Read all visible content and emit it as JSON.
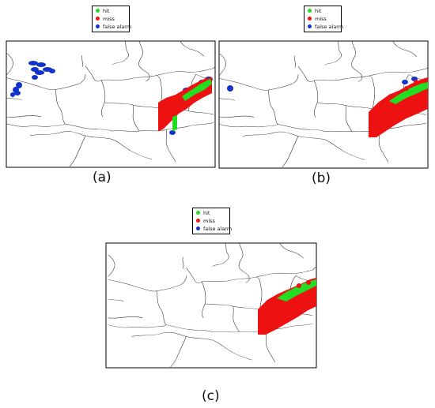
{
  "legend": {
    "items": [
      {
        "label": "hit",
        "color": "#22dd22"
      },
      {
        "label": "miss",
        "color": "#ee1111"
      },
      {
        "label": "false alarm",
        "color": "#1133cc"
      }
    ]
  },
  "panels": [
    {
      "caption": "(a)"
    },
    {
      "caption": "(b)"
    },
    {
      "caption": "(c)"
    }
  ]
}
